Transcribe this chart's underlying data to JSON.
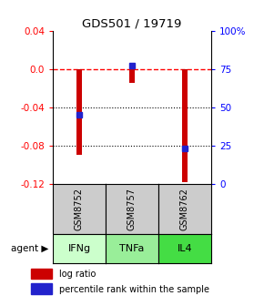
{
  "title": "GDS501 / 19719",
  "samples": [
    "GSM8752",
    "GSM8757",
    "GSM8762"
  ],
  "agents": [
    "IFNg",
    "TNFa",
    "IL4"
  ],
  "log_ratios": [
    -0.09,
    -0.015,
    -0.118
  ],
  "percentile_ranks": [
    45,
    77,
    23
  ],
  "ylim_left": [
    -0.12,
    0.04
  ],
  "ylim_right": [
    0,
    100
  ],
  "left_ticks": [
    0.04,
    0.0,
    -0.04,
    -0.08,
    -0.12
  ],
  "right_ticks": [
    100,
    75,
    50,
    25,
    0
  ],
  "bar_color": "#cc0000",
  "square_color": "#2222cc",
  "agent_colors": [
    "#ccffcc",
    "#99ee99",
    "#44dd44"
  ],
  "sample_bg": "#cccccc",
  "legend_items": [
    "log ratio",
    "percentile rank within the sample"
  ]
}
